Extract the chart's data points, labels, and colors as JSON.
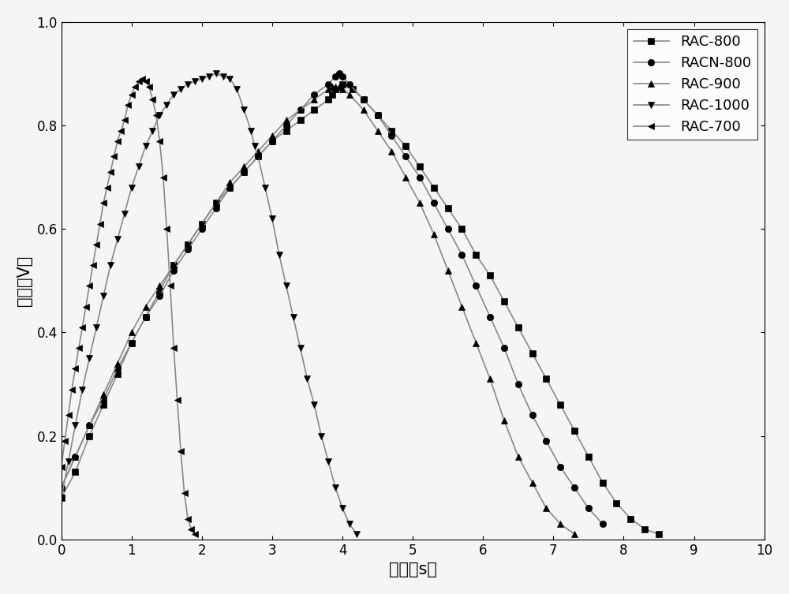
{
  "xlabel": "时间（s）",
  "ylabel": "电压（V）",
  "xlim": [
    0,
    10
  ],
  "ylim": [
    0.0,
    1.0
  ],
  "xticks": [
    0,
    1,
    2,
    3,
    4,
    5,
    6,
    7,
    8,
    9,
    10
  ],
  "yticks": [
    0.0,
    0.2,
    0.4,
    0.6,
    0.8,
    1.0
  ],
  "series": [
    {
      "label": "RAC-800",
      "marker": "s",
      "x": [
        0.0,
        0.2,
        0.4,
        0.6,
        0.8,
        1.0,
        1.2,
        1.4,
        1.6,
        1.8,
        2.0,
        2.2,
        2.4,
        2.6,
        2.8,
        3.0,
        3.2,
        3.4,
        3.6,
        3.8,
        3.85,
        3.9,
        4.0,
        4.15,
        4.3,
        4.5,
        4.7,
        4.9,
        5.1,
        5.3,
        5.5,
        5.7,
        5.9,
        6.1,
        6.3,
        6.5,
        6.7,
        6.9,
        7.1,
        7.3,
        7.5,
        7.7,
        7.9,
        8.1,
        8.3,
        8.5,
        8.6
      ],
      "y": [
        0.08,
        0.13,
        0.2,
        0.26,
        0.32,
        0.38,
        0.43,
        0.48,
        0.53,
        0.57,
        0.61,
        0.65,
        0.68,
        0.71,
        0.74,
        0.77,
        0.79,
        0.81,
        0.83,
        0.85,
        0.86,
        0.87,
        0.88,
        0.87,
        0.85,
        0.82,
        0.79,
        0.76,
        0.72,
        0.68,
        0.64,
        0.6,
        0.55,
        0.51,
        0.46,
        0.41,
        0.36,
        0.31,
        0.26,
        0.21,
        0.16,
        0.11,
        0.07,
        0.04,
        0.02,
        0.01,
        0.0
      ]
    },
    {
      "label": "RACN-800",
      "marker": "o",
      "x": [
        0.0,
        0.2,
        0.4,
        0.6,
        0.8,
        1.0,
        1.2,
        1.4,
        1.6,
        1.8,
        2.0,
        2.2,
        2.4,
        2.6,
        2.8,
        3.0,
        3.2,
        3.4,
        3.6,
        3.8,
        3.9,
        3.95,
        4.0,
        4.1,
        4.3,
        4.5,
        4.7,
        4.9,
        5.1,
        5.3,
        5.5,
        5.7,
        5.9,
        6.1,
        6.3,
        6.5,
        6.7,
        6.9,
        7.1,
        7.3,
        7.5,
        7.7,
        7.9
      ],
      "y": [
        0.1,
        0.16,
        0.22,
        0.27,
        0.33,
        0.38,
        0.43,
        0.47,
        0.52,
        0.56,
        0.6,
        0.64,
        0.68,
        0.71,
        0.74,
        0.77,
        0.8,
        0.83,
        0.86,
        0.88,
        0.895,
        0.9,
        0.895,
        0.88,
        0.85,
        0.82,
        0.78,
        0.74,
        0.7,
        0.65,
        0.6,
        0.55,
        0.49,
        0.43,
        0.37,
        0.3,
        0.24,
        0.19,
        0.14,
        0.1,
        0.06,
        0.03,
        0.0
      ]
    },
    {
      "label": "RAC-900",
      "marker": "^",
      "x": [
        0.0,
        0.2,
        0.4,
        0.6,
        0.8,
        1.0,
        1.2,
        1.4,
        1.6,
        1.8,
        2.0,
        2.2,
        2.4,
        2.6,
        2.8,
        3.0,
        3.2,
        3.4,
        3.6,
        3.8,
        3.85,
        3.9,
        3.95,
        4.0,
        4.1,
        4.3,
        4.5,
        4.7,
        4.9,
        5.1,
        5.3,
        5.5,
        5.7,
        5.9,
        6.1,
        6.3,
        6.5,
        6.7,
        6.9,
        7.1,
        7.3,
        7.5
      ],
      "y": [
        0.1,
        0.16,
        0.22,
        0.28,
        0.34,
        0.4,
        0.45,
        0.49,
        0.53,
        0.57,
        0.61,
        0.65,
        0.69,
        0.72,
        0.75,
        0.78,
        0.81,
        0.83,
        0.85,
        0.87,
        0.875,
        0.875,
        0.875,
        0.87,
        0.86,
        0.83,
        0.79,
        0.75,
        0.7,
        0.65,
        0.59,
        0.52,
        0.45,
        0.38,
        0.31,
        0.23,
        0.16,
        0.11,
        0.06,
        0.03,
        0.01,
        0.0
      ]
    },
    {
      "label": "RAC-1000",
      "marker": "v",
      "x": [
        0.0,
        0.1,
        0.2,
        0.3,
        0.4,
        0.5,
        0.6,
        0.7,
        0.8,
        0.9,
        1.0,
        1.1,
        1.2,
        1.3,
        1.4,
        1.5,
        1.6,
        1.7,
        1.8,
        1.9,
        2.0,
        2.1,
        2.2,
        2.3,
        2.4,
        2.5,
        2.6,
        2.7,
        2.75,
        2.8,
        2.9,
        3.0,
        3.1,
        3.2,
        3.3,
        3.4,
        3.5,
        3.6,
        3.7,
        3.8,
        3.9,
        4.0,
        4.1,
        4.2,
        4.3,
        4.4,
        4.5,
        4.6,
        4.7,
        4.8,
        4.9,
        5.0,
        5.1,
        5.2
      ],
      "y": [
        0.08,
        0.15,
        0.22,
        0.29,
        0.35,
        0.41,
        0.47,
        0.53,
        0.58,
        0.63,
        0.68,
        0.72,
        0.76,
        0.79,
        0.82,
        0.84,
        0.86,
        0.87,
        0.88,
        0.885,
        0.89,
        0.895,
        0.9,
        0.895,
        0.89,
        0.87,
        0.83,
        0.79,
        0.76,
        0.74,
        0.68,
        0.62,
        0.55,
        0.49,
        0.43,
        0.37,
        0.31,
        0.26,
        0.2,
        0.15,
        0.1,
        0.06,
        0.03,
        0.01,
        0.0,
        0.0,
        0.0,
        0.0,
        0.0,
        0.0,
        0.0,
        0.0,
        0.0,
        0.0
      ]
    },
    {
      "label": "RAC-700",
      "marker": "<",
      "x": [
        0.0,
        0.05,
        0.1,
        0.15,
        0.2,
        0.25,
        0.3,
        0.35,
        0.4,
        0.45,
        0.5,
        0.55,
        0.6,
        0.65,
        0.7,
        0.75,
        0.8,
        0.85,
        0.9,
        0.95,
        1.0,
        1.05,
        1.1,
        1.15,
        1.2,
        1.25,
        1.3,
        1.35,
        1.4,
        1.45,
        1.5,
        1.55,
        1.6,
        1.65,
        1.7,
        1.75,
        1.8,
        1.85,
        1.9,
        1.95,
        2.0,
        2.1,
        2.2,
        2.3
      ],
      "y": [
        0.14,
        0.19,
        0.24,
        0.29,
        0.33,
        0.37,
        0.41,
        0.45,
        0.49,
        0.53,
        0.57,
        0.61,
        0.65,
        0.68,
        0.71,
        0.74,
        0.77,
        0.79,
        0.81,
        0.84,
        0.86,
        0.875,
        0.885,
        0.89,
        0.885,
        0.875,
        0.85,
        0.82,
        0.77,
        0.7,
        0.6,
        0.49,
        0.37,
        0.27,
        0.17,
        0.09,
        0.04,
        0.02,
        0.01,
        0.0,
        0.0,
        0.0,
        0.0,
        0.0
      ]
    }
  ],
  "line_color": "#888888",
  "background_color": "#f5f5f5",
  "legend_fontsize": 13,
  "axis_label_fontsize": 15,
  "tick_fontsize": 12,
  "marker_size": 6,
  "linewidth": 1.2
}
